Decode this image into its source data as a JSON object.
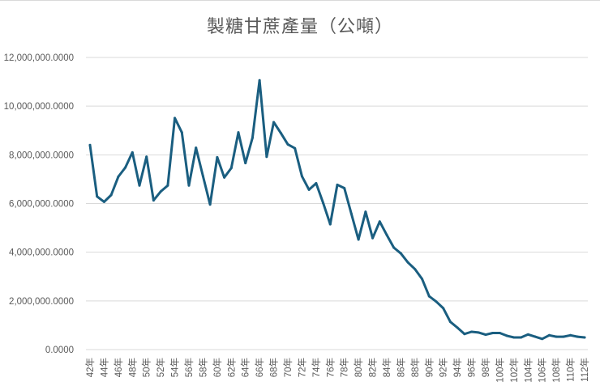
{
  "chart_data": {
    "type": "line",
    "title": "製糖甘蔗產量（公噸）",
    "xlabel": "",
    "ylabel": "",
    "ylim": [
      0,
      12000000
    ],
    "yticks": [
      "0.0000",
      "2,000,000.0000",
      "4,000,000.0000",
      "6,000,000.0000",
      "8,000,000.0000",
      "10,000,000.0000",
      "12,000,000.0000"
    ],
    "ytick_values": [
      0,
      2000000,
      4000000,
      6000000,
      8000000,
      10000000,
      12000000
    ],
    "grid": true,
    "legend": "none",
    "line_color": "#1a5e80",
    "categories": [
      "42年",
      "43年",
      "44年",
      "45年",
      "46年",
      "47年",
      "48年",
      "49年",
      "50年",
      "51年",
      "52年",
      "53年",
      "54年",
      "55年",
      "56年",
      "57年",
      "58年",
      "59年",
      "60年",
      "61年",
      "62年",
      "63年",
      "64年",
      "65年",
      "66年",
      "67年",
      "68年",
      "69年",
      "70年",
      "71年",
      "72年",
      "73年",
      "74年",
      "75年",
      "76年",
      "77年",
      "78年",
      "79年",
      "80年",
      "81年",
      "82年",
      "83年",
      "84年",
      "85年",
      "86年",
      "87年",
      "88年",
      "89年",
      "90年",
      "91年",
      "92年",
      "93年",
      "94年",
      "95年",
      "96年",
      "97年",
      "98年",
      "99年",
      "100年",
      "101年",
      "102年",
      "103年",
      "104年",
      "105年",
      "106年",
      "107年",
      "108年",
      "109年",
      "110年",
      "111年",
      "112年"
    ],
    "values": [
      8400000,
      6290000,
      6070000,
      6350000,
      7100000,
      7480000,
      8100000,
      6740000,
      7920000,
      6130000,
      6490000,
      6740000,
      9510000,
      8920000,
      6740000,
      8290000,
      7120000,
      5960000,
      7900000,
      7070000,
      7460000,
      8920000,
      7660000,
      8700000,
      11060000,
      7920000,
      9340000,
      8900000,
      8430000,
      8270000,
      7120000,
      6570000,
      6830000,
      6020000,
      5150000,
      6770000,
      6630000,
      5570000,
      4520000,
      5660000,
      4580000,
      5260000,
      4710000,
      4190000,
      3950000,
      3580000,
      3300000,
      2900000,
      2190000,
      1970000,
      1700000,
      1140000,
      900000,
      640000,
      730000,
      700000,
      610000,
      680000,
      680000,
      570000,
      500000,
      500000,
      620000,
      530000,
      440000,
      590000,
      530000,
      530000,
      590000,
      530000,
      500000
    ]
  }
}
